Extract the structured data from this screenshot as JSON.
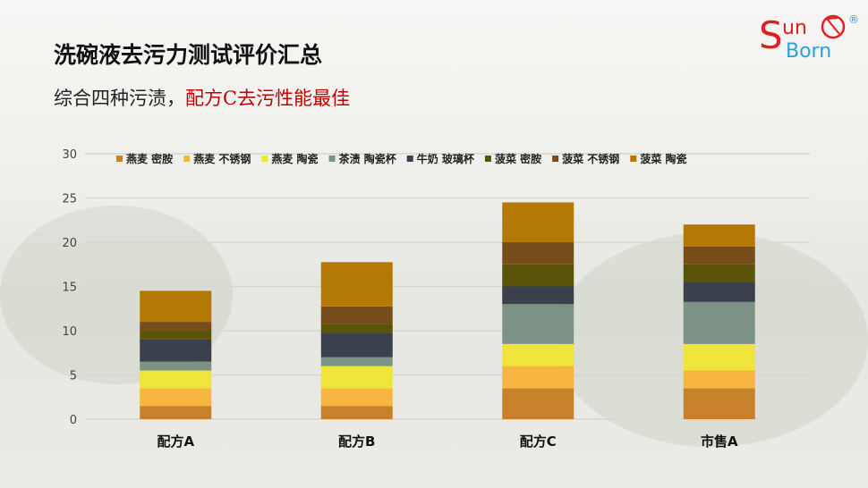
{
  "header": {
    "title": "洗碗液去污力测试评价汇总",
    "subtitle_prefix": "综合四种污渍，",
    "subtitle_highlight": "配方C去污性能最佳"
  },
  "logo": {
    "text": "SunBorn",
    "mark": "®"
  },
  "chart_data": {
    "type": "bar",
    "stacked": true,
    "categories": [
      "配方A",
      "配方B",
      "配方C",
      "市售A"
    ],
    "ylim": [
      0,
      30
    ],
    "yticks": [
      0,
      5,
      10,
      15,
      20,
      25,
      30
    ],
    "grid": true,
    "legend": "top",
    "series": [
      {
        "name": "燕麦 密胺",
        "color": "#C8812B",
        "values": [
          1.5,
          1.5,
          3.5,
          3.5
        ]
      },
      {
        "name": "燕麦 不锈钢",
        "color": "#F6B640",
        "values": [
          2,
          2,
          2.5,
          2
        ]
      },
      {
        "name": "燕麦 陶瓷",
        "color": "#EEE43A",
        "values": [
          2,
          2.5,
          2.5,
          3
        ]
      },
      {
        "name": "茶渍 陶瓷杯",
        "color": "#7D9287",
        "values": [
          1,
          1,
          4.5,
          4.75
        ]
      },
      {
        "name": "牛奶 玻璃杯",
        "color": "#3A414C",
        "values": [
          2.5,
          2.75,
          2,
          2.25
        ]
      },
      {
        "name": "菠菜 密胺",
        "color": "#5A5408",
        "values": [
          1,
          1,
          2.5,
          2
        ]
      },
      {
        "name": "菠菜 不锈钢",
        "color": "#774D1B",
        "values": [
          1,
          2,
          2.5,
          2
        ]
      },
      {
        "name": "菠菜 陶瓷",
        "color": "#B47905",
        "values": [
          3.5,
          5,
          4.5,
          2.5
        ]
      }
    ]
  }
}
